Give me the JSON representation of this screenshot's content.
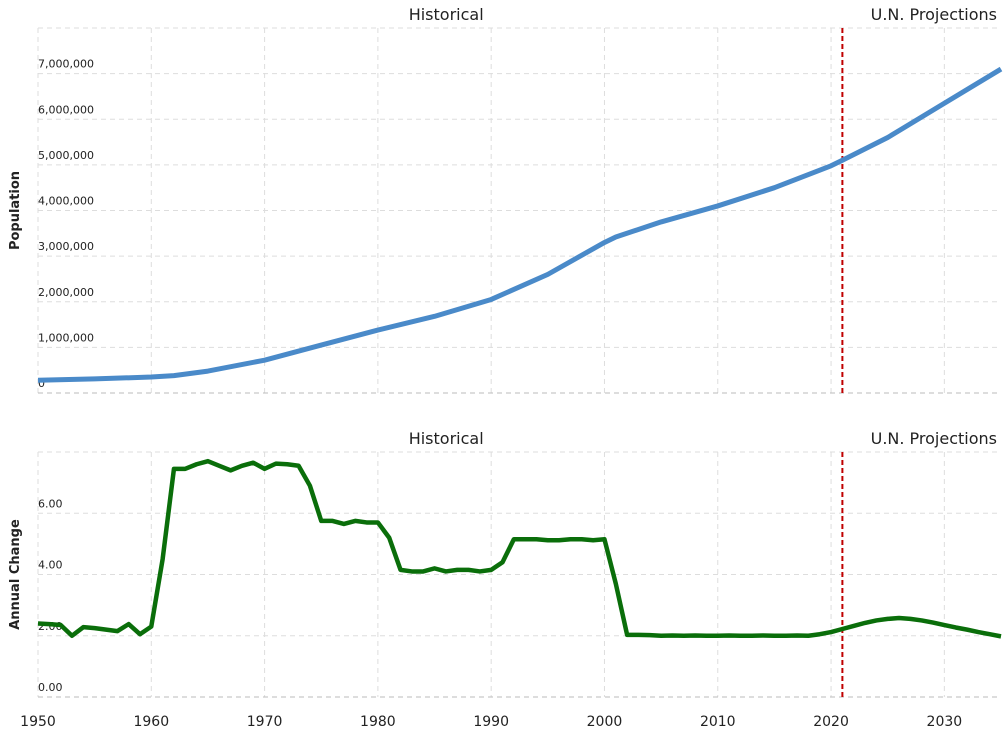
{
  "chart_data": [
    {
      "type": "line",
      "ylabel": "Population",
      "annotations": [
        "Historical",
        "U.N. Projections"
      ],
      "x": [
        1950,
        1955,
        1960,
        1962,
        1965,
        1970,
        1975,
        1980,
        1985,
        1990,
        1995,
        2000,
        2001,
        2005,
        2010,
        2015,
        2020,
        2021,
        2025,
        2030,
        2035
      ],
      "values": [
        280000,
        310000,
        350000,
        380000,
        480000,
        720000,
        1050000,
        1380000,
        1680000,
        2050000,
        2600000,
        3300000,
        3420000,
        3750000,
        4100000,
        4500000,
        4980000,
        5100000,
        5600000,
        6350000,
        7100000
      ],
      "color": "#4a8ac9",
      "ylim": [
        0,
        8000000
      ],
      "yticks": [
        0,
        {
          "value": 1000000,
          "label": "1,000,000"
        },
        {
          "value": 2000000,
          "label": "2,000,000"
        },
        {
          "value": 3000000,
          "label": "3,000,000"
        },
        {
          "value": 4000000,
          "label": "4,000,000"
        },
        {
          "value": 5000000,
          "label": "5,000,000"
        },
        {
          "value": 6000000,
          "label": "6,000,000"
        },
        {
          "value": 7000000,
          "label": "7,000,000"
        }
      ],
      "grid": true,
      "divider": {
        "x": 2021,
        "color": "#c00000"
      }
    },
    {
      "type": "line",
      "ylabel": "Annual Change",
      "annotations": [
        "Historical",
        "U.N. Projections"
      ],
      "x": [
        1950,
        1951,
        1952,
        1953,
        1954,
        1955,
        1956,
        1957,
        1958,
        1959,
        1960,
        1961,
        1962,
        1963,
        1964,
        1965,
        1966,
        1967,
        1968,
        1969,
        1970,
        1971,
        1972,
        1973,
        1974,
        1975,
        1976,
        1977,
        1978,
        1979,
        1980,
        1981,
        1982,
        1983,
        1984,
        1985,
        1986,
        1987,
        1988,
        1989,
        1990,
        1991,
        1992,
        1993,
        1994,
        1995,
        1996,
        1997,
        1998,
        1999,
        2000,
        2001,
        2002,
        2003,
        2004,
        2005,
        2006,
        2007,
        2008,
        2009,
        2010,
        2011,
        2012,
        2013,
        2014,
        2015,
        2016,
        2017,
        2018,
        2019,
        2020,
        2021,
        2022,
        2023,
        2024,
        2025,
        2026,
        2027,
        2028,
        2029,
        2030,
        2031,
        2032,
        2033,
        2034,
        2035
      ],
      "values": [
        2.4,
        2.38,
        2.35,
        2.0,
        2.28,
        2.25,
        2.2,
        2.15,
        2.38,
        2.05,
        2.3,
        4.5,
        7.45,
        7.45,
        7.6,
        7.7,
        7.55,
        7.4,
        7.55,
        7.65,
        7.45,
        7.62,
        7.6,
        7.55,
        6.9,
        5.75,
        5.75,
        5.65,
        5.75,
        5.7,
        5.7,
        5.2,
        4.15,
        4.1,
        4.1,
        4.2,
        4.1,
        4.15,
        4.15,
        4.1,
        4.15,
        4.4,
        5.15,
        5.15,
        5.15,
        5.12,
        5.12,
        5.15,
        5.15,
        5.12,
        5.15,
        3.7,
        2.03,
        2.03,
        2.02,
        2.0,
        2.01,
        2.0,
        2.01,
        2.0,
        2.0,
        2.01,
        2.0,
        2.0,
        2.01,
        2.0,
        2.0,
        2.01,
        2.0,
        2.05,
        2.12,
        2.22,
        2.32,
        2.42,
        2.5,
        2.55,
        2.58,
        2.55,
        2.5,
        2.43,
        2.35,
        2.27,
        2.2,
        2.12,
        2.05,
        1.98
      ],
      "color": "#0a6e0a",
      "ylim": [
        0,
        8
      ],
      "yticks": [
        {
          "value": 0,
          "label": "0.00"
        },
        {
          "value": 2,
          "label": "2.00"
        },
        {
          "value": 4,
          "label": "4.00"
        },
        {
          "value": 6,
          "label": "6.00"
        }
      ],
      "xlim": [
        1950,
        2035
      ],
      "xticks": [
        1950,
        1960,
        1970,
        1980,
        1990,
        2000,
        2010,
        2020,
        2030
      ],
      "grid": true,
      "divider": {
        "x": 2021,
        "color": "#c00000"
      }
    }
  ]
}
